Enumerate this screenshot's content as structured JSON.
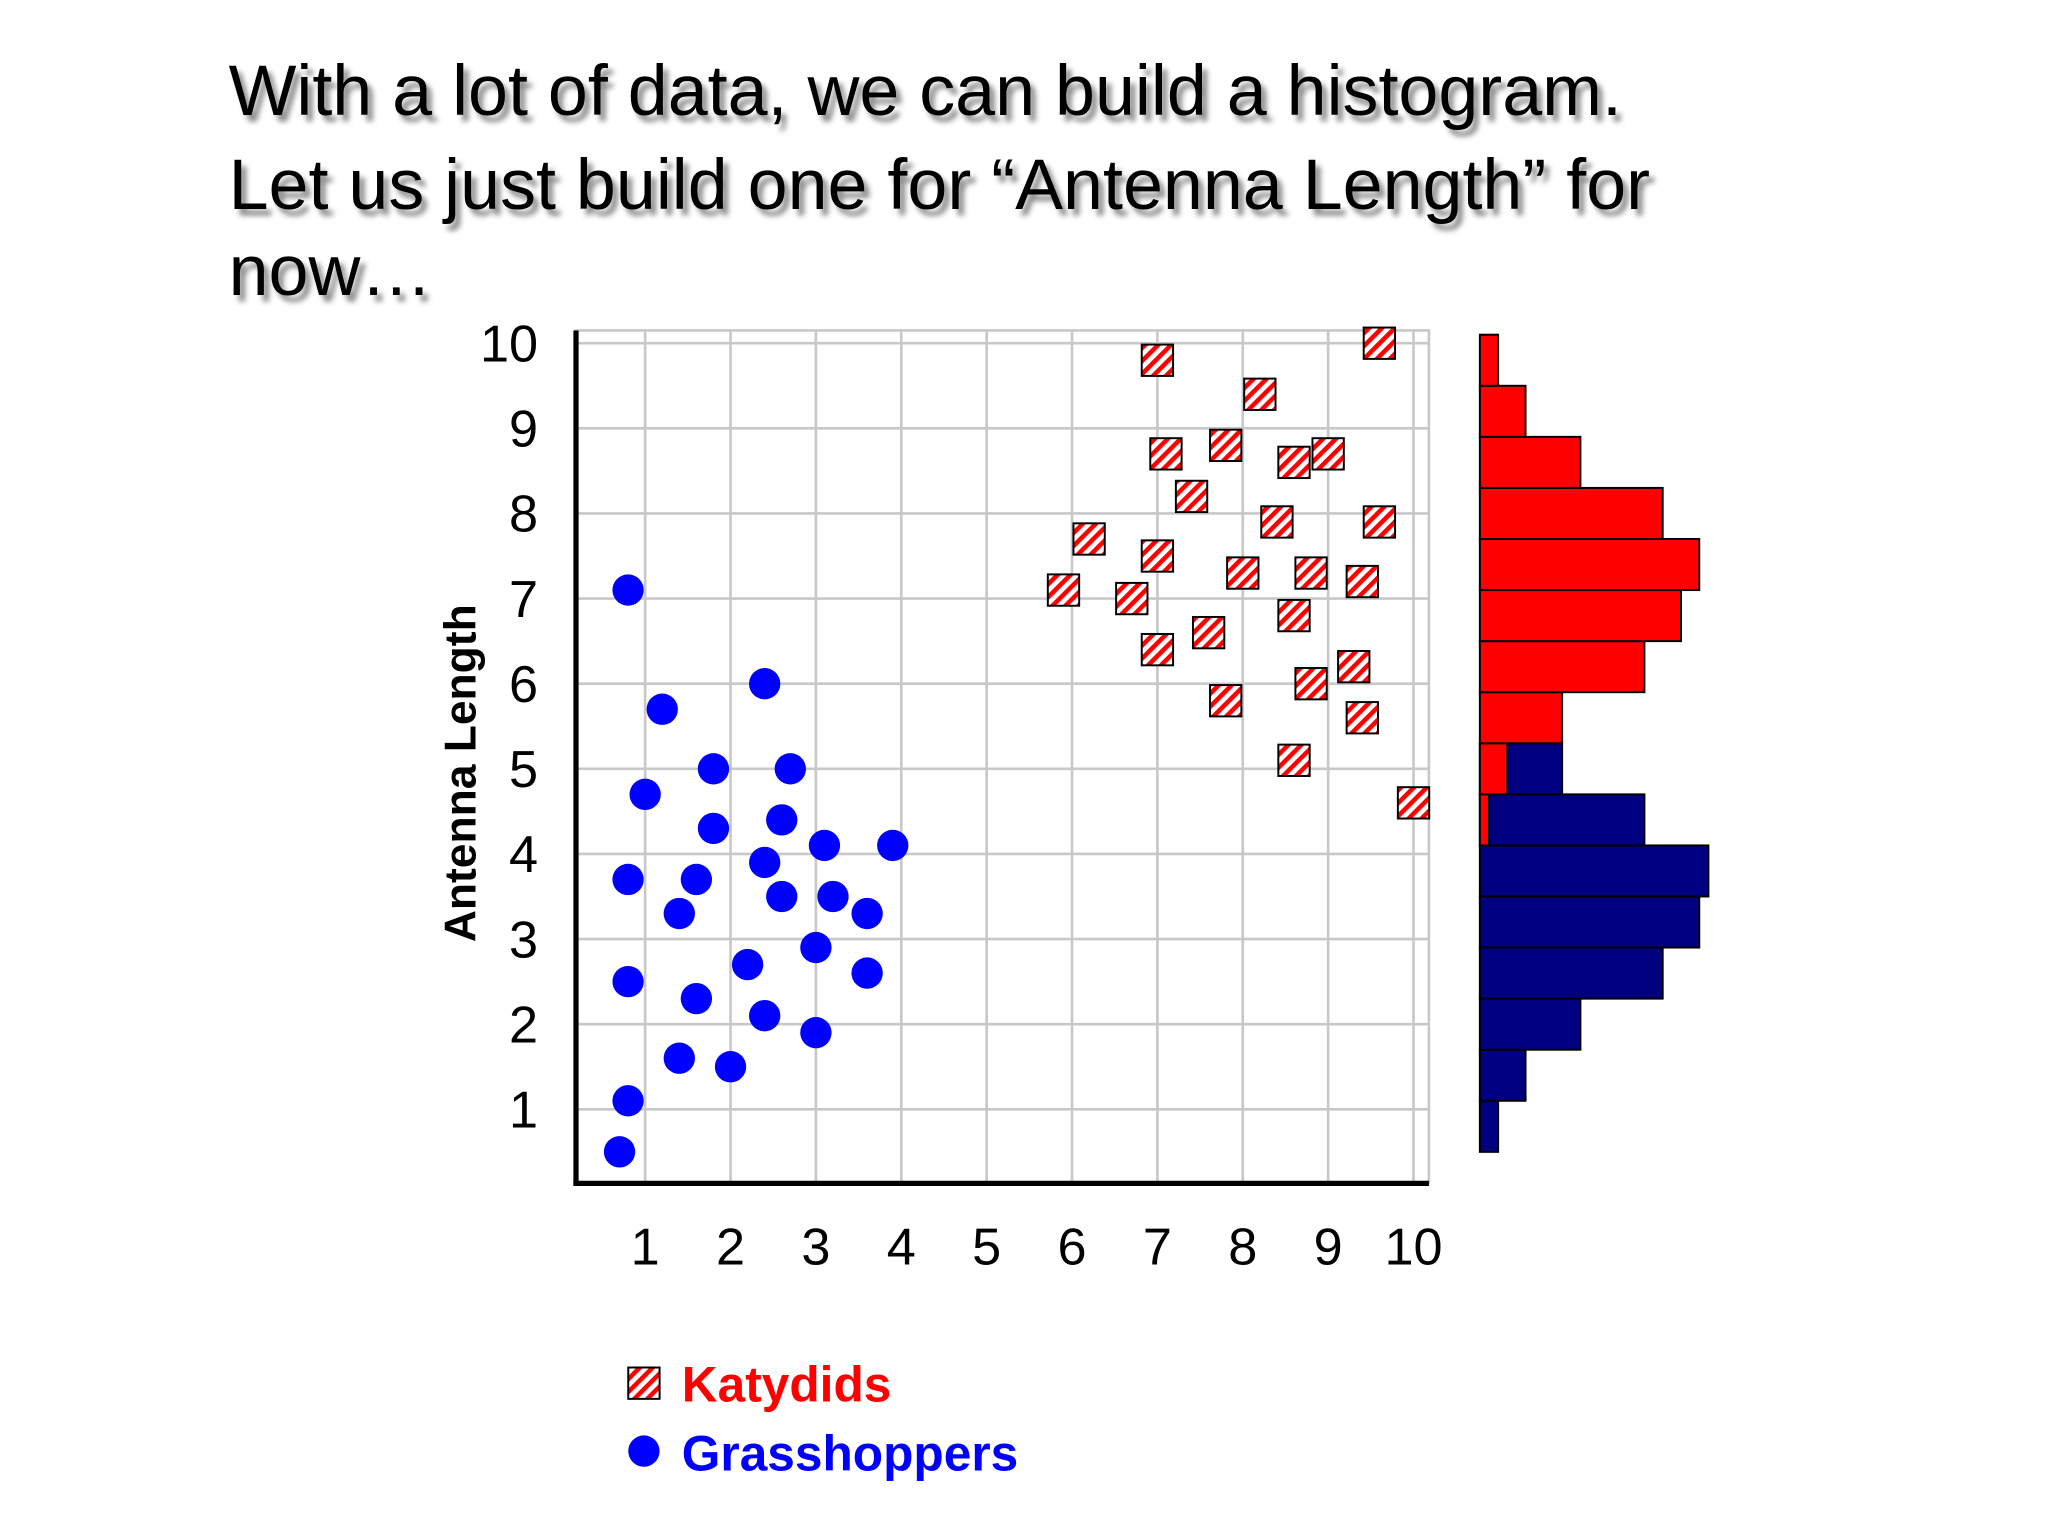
{
  "title": [
    "With a lot of data, we can build a histogram.",
    "Let us just build one for “Antenna Length” for",
    "now…"
  ],
  "chart_data": [
    {
      "type": "scatter",
      "y_label": "Antenna Length",
      "xlim": [
        0.19,
        10.18
      ],
      "ylim": [
        0.13,
        10.15
      ],
      "xticks": [
        1,
        2,
        3,
        4,
        5,
        6,
        7,
        8,
        9,
        10
      ],
      "yticks": [
        1,
        2,
        3,
        4,
        5,
        6,
        7,
        8,
        9,
        10
      ],
      "grid": true,
      "series": [
        {
          "name": "Katydids",
          "color": "#ff0000",
          "marker": "square",
          "x": [
            7.0,
            9.6,
            8.2,
            7.1,
            7.8,
            8.6,
            9.0,
            7.4,
            8.4,
            9.6,
            6.2,
            7.0,
            8.0,
            8.8,
            9.4,
            5.9,
            6.7,
            8.6,
            7.6,
            7.0,
            9.3,
            7.8,
            8.8,
            9.4,
            8.6,
            10.0
          ],
          "y": [
            9.8,
            10.0,
            9.4,
            8.7,
            8.8,
            8.6,
            8.7,
            8.2,
            7.9,
            7.9,
            7.7,
            7.5,
            7.3,
            7.3,
            7.2,
            7.1,
            7.0,
            6.8,
            6.6,
            6.4,
            6.2,
            5.8,
            6.0,
            5.6,
            5.1,
            4.6
          ]
        },
        {
          "name": "Grasshoppers",
          "color": "#0000ff",
          "marker": "circle",
          "x": [
            0.8,
            2.4,
            1.2,
            1.8,
            2.7,
            1.0,
            1.8,
            2.6,
            3.1,
            3.9,
            2.4,
            0.8,
            1.6,
            2.6,
            3.2,
            3.6,
            1.4,
            3.0,
            2.2,
            3.6,
            0.8,
            1.6,
            2.4,
            3.0,
            1.4,
            2.0,
            0.8,
            0.7
          ],
          "y": [
            7.1,
            6.0,
            5.7,
            5.0,
            5.0,
            4.7,
            4.3,
            4.4,
            4.1,
            4.1,
            3.9,
            3.7,
            3.7,
            3.5,
            3.5,
            3.3,
            3.3,
            2.9,
            2.7,
            2.6,
            2.5,
            2.3,
            2.1,
            1.9,
            1.6,
            1.5,
            1.1,
            0.5
          ]
        }
      ]
    },
    {
      "type": "histogram",
      "orientation": "horizontal",
      "xlim": [
        0,
        26
      ],
      "ylim": [
        0.13,
        10.15
      ],
      "bins": [
        0.5,
        1.1,
        1.7,
        2.3,
        2.9,
        3.5,
        4.1,
        4.7,
        5.3,
        5.9,
        6.5,
        7.1,
        7.7,
        8.3,
        8.9,
        9.5,
        10.1
      ],
      "series": [
        {
          "color": "#000080",
          "values": [
            2,
            5,
            11,
            20,
            24,
            25,
            18,
            9,
            0,
            0,
            0,
            0,
            0,
            0,
            0,
            0
          ]
        },
        {
          "color": "#ff0000",
          "values": [
            0,
            0,
            0,
            0,
            0,
            0,
            1,
            3,
            9,
            18,
            22,
            24,
            20,
            11,
            5,
            2
          ]
        }
      ]
    }
  ]
}
